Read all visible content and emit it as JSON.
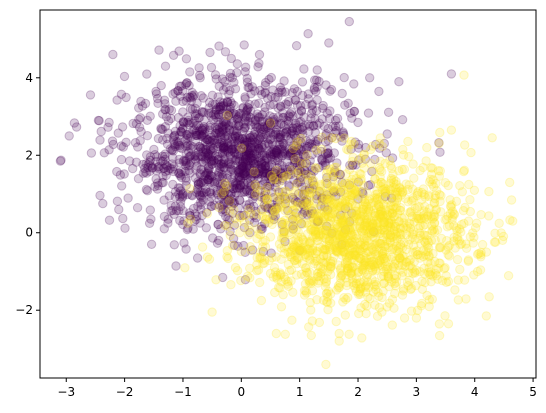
{
  "chart_data": {
    "type": "scatter",
    "title": "",
    "xlabel": "",
    "ylabel": "",
    "xlim": [
      -3.45,
      5.05
    ],
    "ylim": [
      -3.75,
      5.75
    ],
    "xticks": [
      -3,
      -2,
      -1,
      0,
      1,
      2,
      3,
      4,
      5
    ],
    "yticks": [
      -2,
      0,
      2,
      4
    ],
    "xtick_labels": [
      "−3",
      "−2",
      "−1",
      "0",
      "1",
      "2",
      "3",
      "4",
      "5"
    ],
    "ytick_labels": [
      "−2",
      "0",
      "2",
      "4"
    ],
    "grid": false,
    "legend": "none",
    "marker_alpha": 0.2,
    "series": [
      {
        "color": "#440154",
        "cluster": {
          "center": [
            0.0,
            2.0
          ],
          "std": [
            0.95,
            0.95
          ],
          "n": 1500
        },
        "outliers": [
          [
            1.85,
            5.45
          ],
          [
            0.05,
            4.85
          ],
          [
            -2.2,
            4.6
          ],
          [
            -3.1,
            1.85
          ],
          [
            -2.95,
            2.5
          ],
          [
            1.5,
            4.9
          ],
          [
            -1.3,
            4.3
          ],
          [
            3.6,
            4.1
          ],
          [
            2.7,
            3.9
          ],
          [
            -2.45,
            2.9
          ],
          [
            2.5,
            2.55
          ],
          [
            -2.1,
            0.6
          ],
          [
            -1.55,
            0.35
          ],
          [
            2.2,
            4.0
          ],
          [
            1.3,
            4.2
          ]
        ]
      },
      {
        "color": "#fde725",
        "cluster": {
          "center": [
            2.0,
            0.0
          ],
          "std": [
            0.95,
            0.95
          ],
          "n": 1500
        },
        "outliers": [
          [
            1.45,
            -3.4
          ],
          [
            4.65,
            0.3
          ],
          [
            4.3,
            2.45
          ],
          [
            3.55,
            -2.35
          ],
          [
            -0.5,
            -2.05
          ],
          [
            4.05,
            -1.0
          ],
          [
            3.6,
            2.65
          ],
          [
            -0.1,
            -0.9
          ],
          [
            1.2,
            -2.65
          ],
          [
            4.6,
            1.3
          ],
          [
            3.0,
            -2.2
          ],
          [
            0.6,
            -2.6
          ],
          [
            4.2,
            -0.5
          ]
        ]
      }
    ]
  }
}
